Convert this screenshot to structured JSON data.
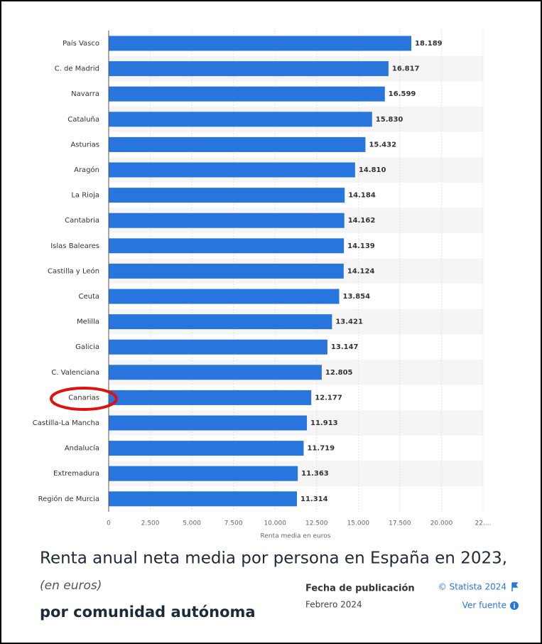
{
  "chart_data": {
    "type": "bar",
    "orientation": "horizontal",
    "categories": [
      "País Vasco",
      "C. de Madrid",
      "Navarra",
      "Cataluña",
      "Asturias",
      "Aragón",
      "La Rioja",
      "Cantabria",
      "Islas Baleares",
      "Castilla y León",
      "Ceuta",
      "Melilla",
      "Galicia",
      "C. Valenciana",
      "Canarias",
      "Castilla-La Mancha",
      "Andalucía",
      "Extremadura",
      "Región de Murcia"
    ],
    "values": [
      18189,
      16817,
      16599,
      15830,
      15432,
      14810,
      14184,
      14162,
      14139,
      14124,
      13854,
      13421,
      13147,
      12805,
      12177,
      11913,
      11719,
      11363,
      11314
    ],
    "value_labels": [
      "18.189",
      "16.817",
      "16.599",
      "15.830",
      "15.432",
      "14.810",
      "14.184",
      "14.162",
      "14.139",
      "14.124",
      "13.854",
      "13.421",
      "13.147",
      "12.805",
      "12.177",
      "11.913",
      "11.719",
      "11.363",
      "11.314"
    ],
    "color": "#2876dd",
    "xlim": [
      0,
      22500
    ],
    "xticks": [
      0,
      {
        "value": 2500,
        "label": "2.500"
      },
      {
        "value": 5000,
        "label": "5.000"
      },
      {
        "value": 7500,
        "label": "7.500"
      },
      {
        "value": 10000,
        "label": "10.000"
      },
      {
        "value": 12500,
        "label": "12.500"
      },
      {
        "value": 15000,
        "label": "15.000"
      },
      {
        "value": 17500,
        "label": "17.500"
      },
      {
        "value": 20000,
        "label": "20.000"
      },
      {
        "value": 22500,
        "label": "22...."
      }
    ],
    "xlabel": "Renta media en euros",
    "grid": true,
    "title": "Renta anual neta media por persona en España en 2023,",
    "subtitle": "(en euros)",
    "title_line2": "por comunidad autónoma"
  },
  "footer": {
    "publication_label": "Fecha de publicación",
    "publication_date": "Febrero 2024",
    "copyright": "© Statista 2024",
    "source_link": "Ver fuente"
  }
}
